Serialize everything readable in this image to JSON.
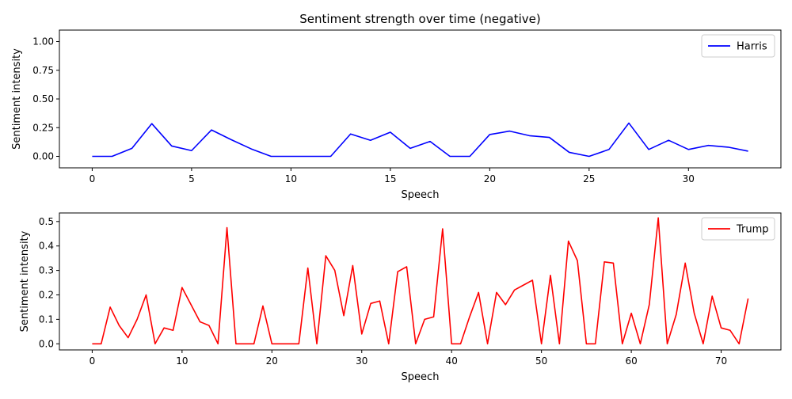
{
  "chart_data": [
    {
      "type": "line",
      "title": "Sentiment strength over time (negative)",
      "xlabel": "Speech",
      "ylabel": "Sentiment intensity",
      "xlim": [
        -1.65,
        34.65
      ],
      "ylim": [
        -0.1,
        1.1
      ],
      "xticks": [
        0,
        5,
        10,
        15,
        20,
        25,
        30
      ],
      "yticks": [
        0.0,
        0.25,
        0.5,
        0.75,
        1.0
      ],
      "ytick_labels": [
        "0.00",
        "0.25",
        "0.50",
        "0.75",
        "1.00"
      ],
      "legend": "top-right",
      "grid": false,
      "series": [
        {
          "name": "Harris",
          "color": "#0000ff",
          "values": [
            0.0,
            0.0,
            0.07,
            0.285,
            0.09,
            0.05,
            0.23,
            0.145,
            0.065,
            0.0,
            0.0,
            0.0,
            0.0,
            0.195,
            0.14,
            0.21,
            0.07,
            0.13,
            0.0,
            0.0,
            0.19,
            0.22,
            0.18,
            0.165,
            0.035,
            0.0,
            0.06,
            0.29,
            0.06,
            0.14,
            0.06,
            0.095,
            0.08,
            0.045
          ]
        }
      ]
    },
    {
      "type": "line",
      "title": "",
      "xlabel": "Speech",
      "ylabel": "Sentiment intensity",
      "xlim": [
        -3.65,
        76.65
      ],
      "ylim": [
        -0.025,
        0.535
      ],
      "xticks": [
        0,
        10,
        20,
        30,
        40,
        50,
        60,
        70
      ],
      "yticks": [
        0.0,
        0.1,
        0.2,
        0.3,
        0.4,
        0.5
      ],
      "ytick_labels": [
        "0.0",
        "0.1",
        "0.2",
        "0.3",
        "0.4",
        "0.5"
      ],
      "legend": "top-right",
      "grid": false,
      "series": [
        {
          "name": "Trump",
          "color": "#ff0000",
          "values": [
            0.0,
            0.0,
            0.15,
            0.075,
            0.025,
            0.1,
            0.2,
            0.0,
            0.065,
            0.055,
            0.23,
            0.16,
            0.09,
            0.075,
            0.0,
            0.475,
            0.0,
            0.0,
            0.0,
            0.155,
            0.0,
            0.0,
            0.0,
            0.0,
            0.31,
            0.0,
            0.36,
            0.3,
            0.115,
            0.32,
            0.04,
            0.165,
            0.175,
            0.0,
            0.295,
            0.315,
            0.0,
            0.1,
            0.11,
            0.47,
            0.0,
            0.0,
            0.11,
            0.21,
            0.0,
            0.21,
            0.16,
            0.22,
            0.24,
            0.26,
            0.0,
            0.28,
            0.0,
            0.42,
            0.34,
            0.0,
            0.0,
            0.335,
            0.33,
            0.0,
            0.125,
            0.0,
            0.16,
            0.515,
            0.0,
            0.12,
            0.33,
            0.125,
            0.0,
            0.195,
            0.065,
            0.055,
            0.0,
            0.185
          ]
        }
      ]
    }
  ]
}
